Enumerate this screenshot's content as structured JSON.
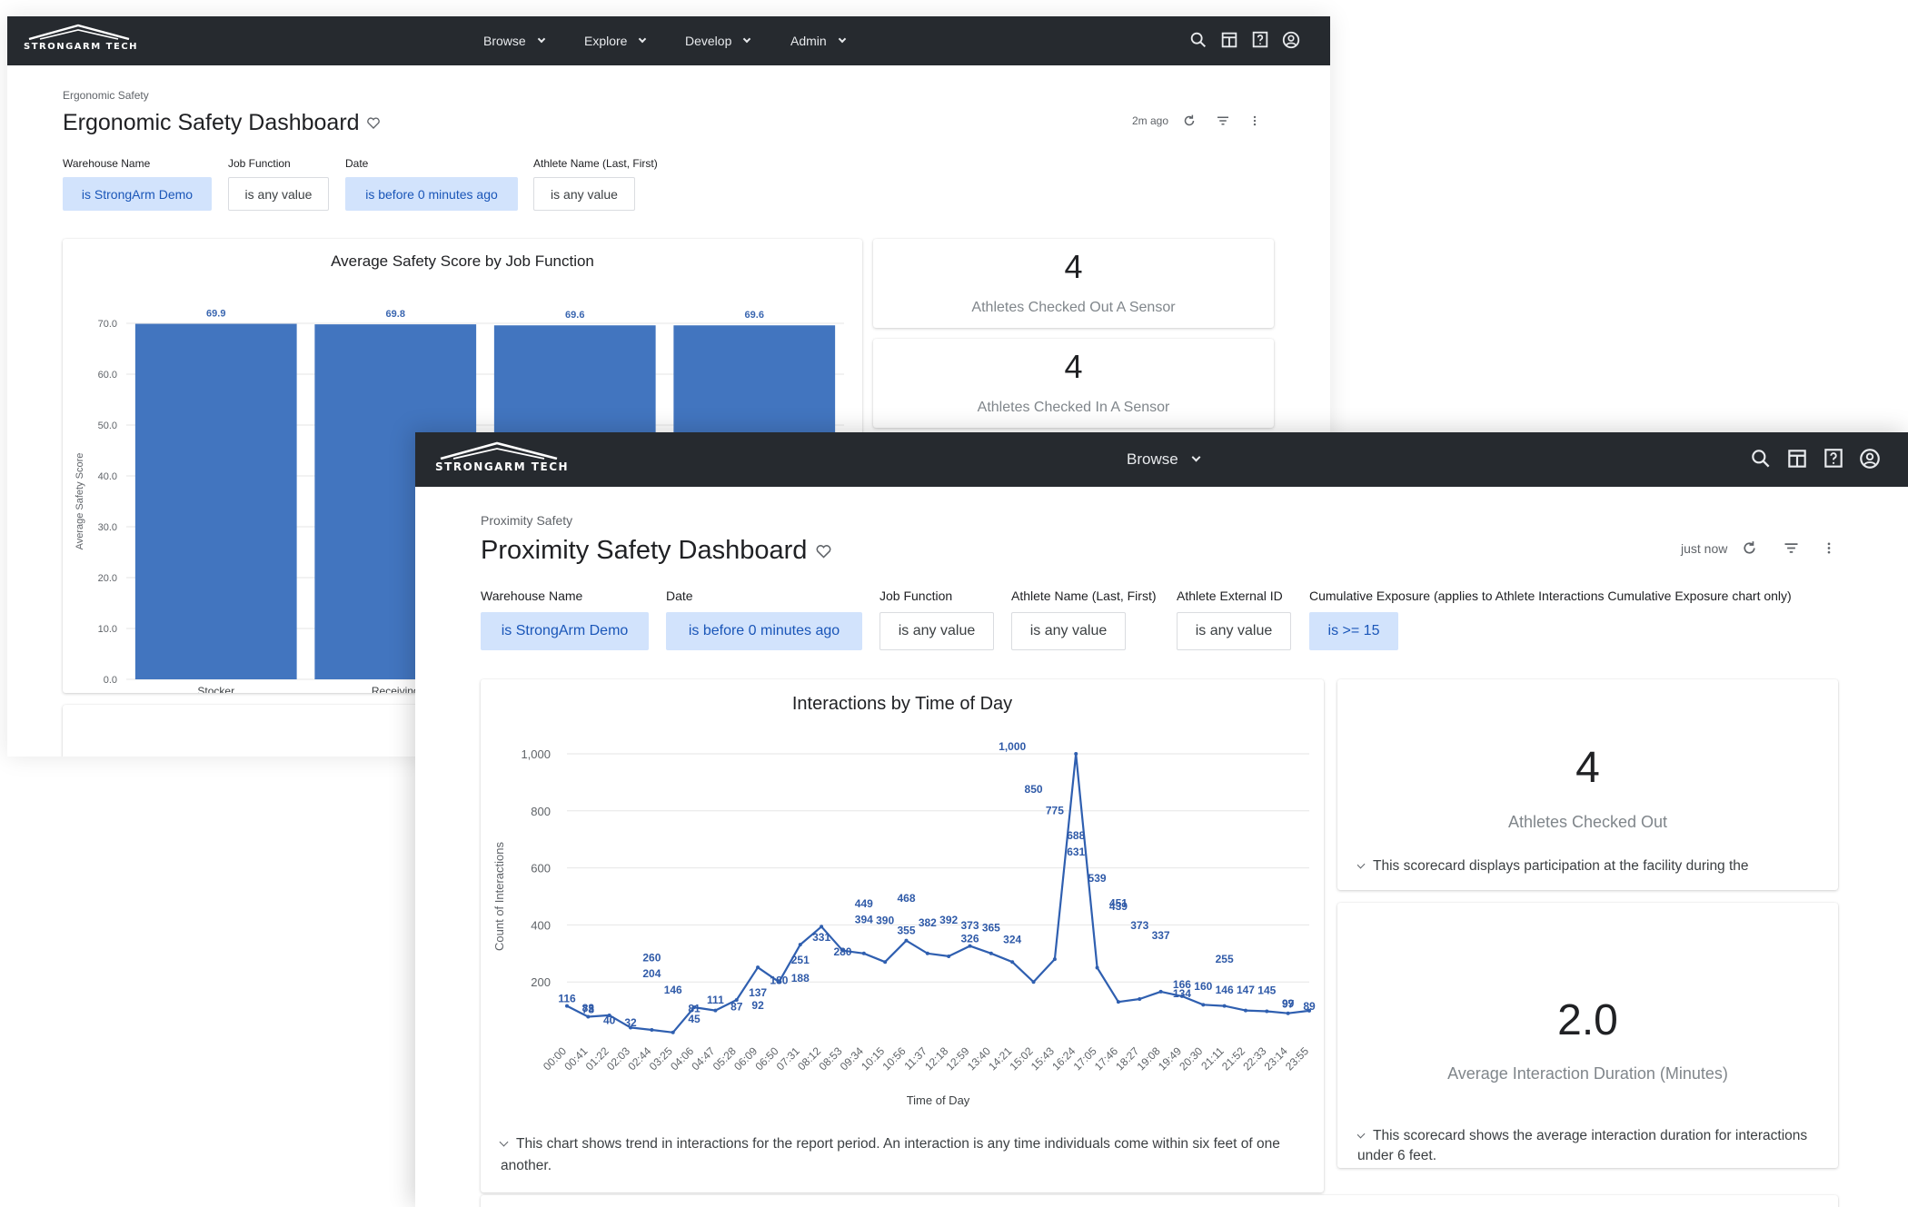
{
  "ergonomic": {
    "nav": {
      "logo_text": "STRONGARM TECH",
      "menu": [
        "Browse",
        "Explore",
        "Develop",
        "Admin"
      ]
    },
    "breadcrumb": "Ergonomic Safety",
    "title": "Ergonomic Safety Dashboard",
    "last_updated": "2m ago",
    "filters": [
      {
        "label": "Warehouse Name",
        "value": "is StrongArm Demo",
        "active": true
      },
      {
        "label": "Job Function",
        "value": "is any value",
        "active": false
      },
      {
        "label": "Date",
        "value": "is before 0 minutes ago",
        "active": true
      },
      {
        "label": "Athlete Name (Last, First)",
        "value": "is any value",
        "active": false
      }
    ],
    "scorecards": [
      {
        "value": "4",
        "label": "Athletes Checked Out A Sensor"
      },
      {
        "value": "4",
        "label": "Athletes Checked In A Sensor"
      }
    ]
  },
  "proximity": {
    "nav": {
      "logo_text": "STRONGARM TECH",
      "menu": [
        "Browse"
      ]
    },
    "breadcrumb": "Proximity Safety",
    "title": "Proximity Safety Dashboard",
    "last_updated": "just now",
    "filters": [
      {
        "label": "Warehouse Name",
        "value": "is StrongArm Demo",
        "active": true
      },
      {
        "label": "Date",
        "value": "is before 0 minutes ago",
        "active": true
      },
      {
        "label": "Job Function",
        "value": "is any value",
        "active": false
      },
      {
        "label": "Athlete Name (Last, First)",
        "value": "is any value",
        "active": false
      },
      {
        "label": "Athlete External ID",
        "value": "is any value",
        "active": false
      },
      {
        "label": "Cumulative Exposure (applies to Athlete Interactions Cumulative Exposure chart only)",
        "value": "is >= 15",
        "active": true
      }
    ],
    "scorecards": [
      {
        "value": "4",
        "label": "Athletes Checked Out",
        "description": "This scorecard displays participation at the facility during the"
      },
      {
        "value": "2.0",
        "label": "Average Interaction Duration (Minutes)",
        "description": "This scorecard shows the average interaction duration for interactions under 6 feet."
      }
    ],
    "chart_description": "This chart shows trend in interactions for the report period. An interaction is any time individuals come within six feet of one another."
  },
  "chart_data": [
    {
      "type": "bar",
      "title": "Average Safety Score by Job Function",
      "xlabel": "",
      "ylabel": "Average Safety Score",
      "categories": [
        "Stocker",
        "Receiving",
        "",
        ""
      ],
      "values": [
        69.9,
        69.8,
        69.6,
        69.6
      ],
      "data_labels": [
        "69.9",
        "69.8",
        "69.6",
        "69.6"
      ],
      "ylim": [
        0,
        70
      ],
      "yticks": [
        "0.0",
        "10.0",
        "20.0",
        "30.0",
        "40.0",
        "50.0",
        "60.0",
        "70.0"
      ],
      "color": "#4275bf",
      "grid": true
    },
    {
      "type": "line",
      "title": "Interactions by Time of Day",
      "xlabel": "Time of Day",
      "ylabel": "Count of Interactions",
      "ylim": [
        0,
        1000
      ],
      "yticks": [
        "200",
        "400",
        "600",
        "800",
        "1,000"
      ],
      "xticks": [
        "00:00",
        "00:41",
        "01:22",
        "02:03",
        "02:44",
        "03:25",
        "04:06",
        "04:47",
        "05:28",
        "06:09",
        "06:50",
        "07:31",
        "08:12",
        "08:53",
        "09:34",
        "10:15",
        "10:56",
        "11:37",
        "12:18",
        "12:59",
        "13:40",
        "14:21",
        "15:02",
        "15:43",
        "16:24",
        "17:05",
        "17:46",
        "18:27",
        "19:08",
        "19:49",
        "20:30",
        "21:11",
        "21:52",
        "22:33",
        "23:14",
        "23:55"
      ],
      "color": "#2f5fb0",
      "grid": true,
      "series": [
        {
          "x": [
            "00:00",
            "00:41",
            "01:22",
            "02:03",
            "02:44",
            "03:25",
            "04:06",
            "04:47",
            "05:28",
            "06:09",
            "06:50",
            "07:31",
            "08:12",
            "08:53",
            "09:34",
            "10:15",
            "10:56",
            "11:37",
            "12:18",
            "12:59",
            "13:40",
            "14:21",
            "15:02",
            "15:43",
            "16:24",
            "17:05",
            "17:46",
            "18:27",
            "19:08",
            "19:49",
            "20:30",
            "21:11",
            "21:52",
            "22:33",
            "23:14",
            "23:55"
          ],
          "values": [
            116,
            78,
            83,
            40,
            32,
            23,
            111,
            100,
            137,
            251,
            200,
            331,
            394,
            310,
            300,
            270,
            345,
            300,
            290,
            326,
            300,
            270,
            200,
            280,
            1000,
            250,
            130,
            140,
            166,
            150,
            120,
            116,
            100,
            97,
            90,
            99
          ]
        }
      ],
      "annotations": [
        "116",
        "78",
        "83",
        "40",
        "32",
        "260",
        "204",
        "146",
        "81",
        "45",
        "111",
        "87",
        "92",
        "137",
        "180",
        "251",
        "188",
        "331",
        "280",
        "449",
        "394",
        "390",
        "355",
        "468",
        "382",
        "392",
        "326",
        "373",
        "365",
        "324",
        "1,000",
        "850",
        "775",
        "688",
        "631",
        "539",
        "451",
        "439",
        "373",
        "337",
        "134",
        "166",
        "160",
        "255",
        "146",
        "147",
        "145",
        "97",
        "99",
        "89"
      ]
    }
  ]
}
